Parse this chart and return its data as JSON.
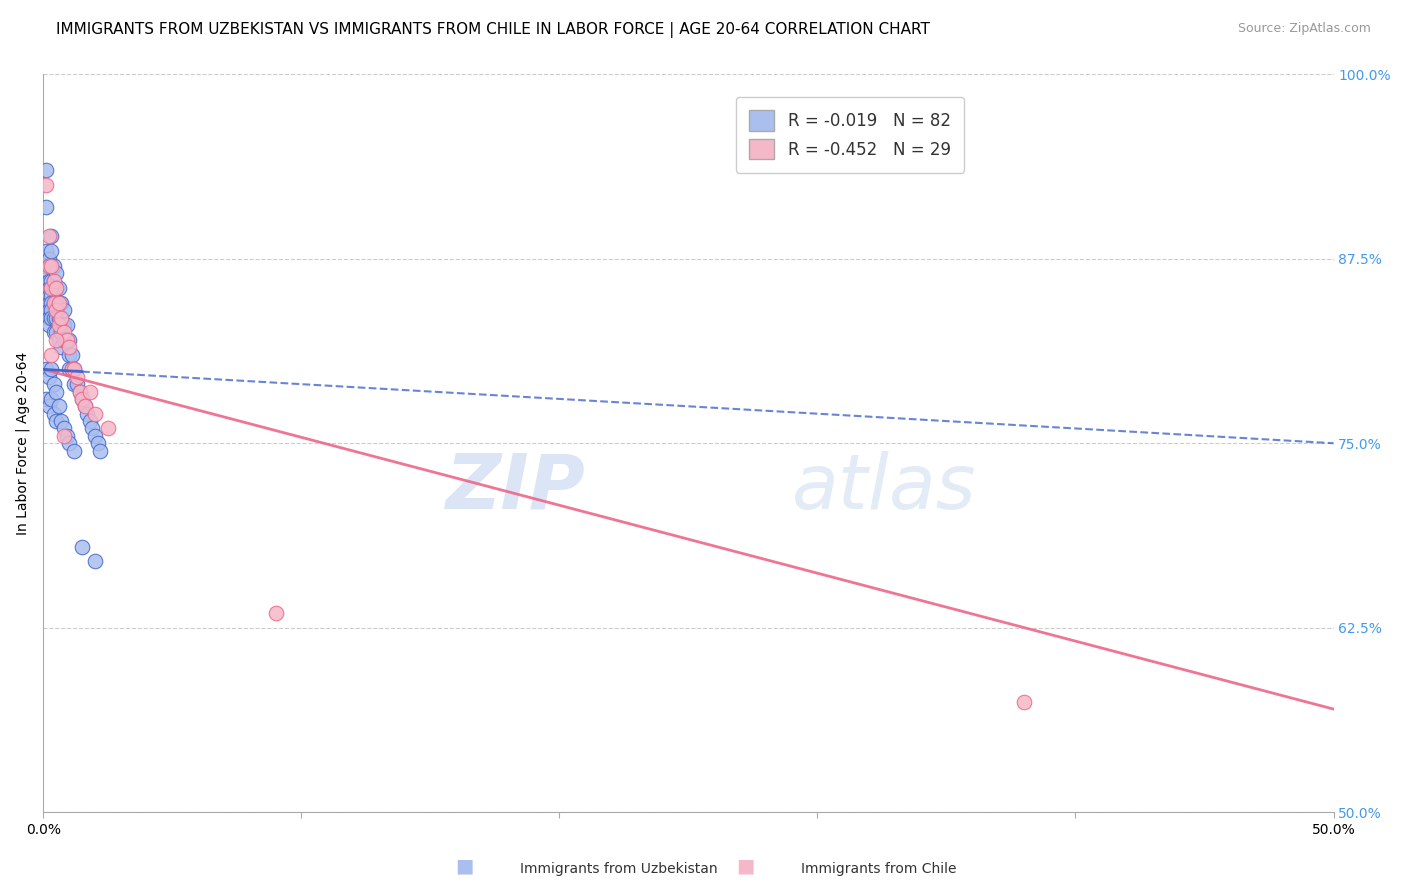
{
  "title": "IMMIGRANTS FROM UZBEKISTAN VS IMMIGRANTS FROM CHILE IN LABOR FORCE | AGE 20-64 CORRELATION CHART",
  "source": "Source: ZipAtlas.com",
  "ylabel": "In Labor Force | Age 20-64",
  "xlim": [
    0.0,
    0.5
  ],
  "ylim": [
    0.5,
    1.0
  ],
  "xticks": [
    0.0,
    0.1,
    0.2,
    0.3,
    0.4,
    0.5
  ],
  "xticklabels": [
    "0.0%",
    "",
    "",
    "",
    "",
    "50.0%"
  ],
  "yticks_right": [
    0.5,
    0.625,
    0.75,
    0.875,
    1.0
  ],
  "ytick_right_labels": [
    "50.0%",
    "62.5%",
    "75.0%",
    "87.5%",
    "100.0%"
  ],
  "grid_color": "#cccccc",
  "background_color": "#ffffff",
  "uzbekistan_color": "#aabfee",
  "uzbekistan_line_color": "#4466cc",
  "chile_color": "#f5b8c8",
  "chile_line_color": "#ee6688",
  "R_uzbekistan": -0.019,
  "N_uzbekistan": 82,
  "R_chile": -0.452,
  "N_chile": 29,
  "legend_label_uzbekistan": "Immigrants from Uzbekistan",
  "legend_label_chile": "Immigrants from Chile",
  "watermark": "ZIPatlas",
  "title_fontsize": 11,
  "axis_label_fontsize": 10,
  "tick_fontsize": 10,
  "uz_trend_x0": 0.0,
  "uz_trend_y0": 0.8,
  "uz_trend_x1": 0.5,
  "uz_trend_y1": 0.75,
  "ch_trend_x0": 0.0,
  "ch_trend_y0": 0.8,
  "ch_trend_x1": 0.5,
  "ch_trend_y1": 0.57,
  "uzbekistan_x": [
    0.001,
    0.001,
    0.001,
    0.001,
    0.002,
    0.002,
    0.002,
    0.002,
    0.002,
    0.002,
    0.002,
    0.002,
    0.002,
    0.002,
    0.003,
    0.003,
    0.003,
    0.003,
    0.003,
    0.003,
    0.003,
    0.003,
    0.003,
    0.004,
    0.004,
    0.004,
    0.004,
    0.004,
    0.004,
    0.005,
    0.005,
    0.005,
    0.005,
    0.005,
    0.006,
    0.006,
    0.006,
    0.006,
    0.007,
    0.007,
    0.007,
    0.007,
    0.008,
    0.008,
    0.008,
    0.009,
    0.009,
    0.01,
    0.01,
    0.01,
    0.011,
    0.011,
    0.012,
    0.012,
    0.013,
    0.014,
    0.015,
    0.016,
    0.017,
    0.018,
    0.019,
    0.02,
    0.021,
    0.022,
    0.001,
    0.001,
    0.002,
    0.002,
    0.003,
    0.003,
    0.004,
    0.004,
    0.005,
    0.005,
    0.006,
    0.007,
    0.008,
    0.009,
    0.01,
    0.012,
    0.015,
    0.02
  ],
  "uzbekistan_y": [
    0.935,
    0.91,
    0.88,
    0.87,
    0.875,
    0.87,
    0.865,
    0.86,
    0.855,
    0.85,
    0.845,
    0.84,
    0.835,
    0.83,
    0.89,
    0.88,
    0.87,
    0.86,
    0.855,
    0.85,
    0.845,
    0.84,
    0.835,
    0.87,
    0.86,
    0.855,
    0.845,
    0.835,
    0.825,
    0.865,
    0.855,
    0.845,
    0.835,
    0.825,
    0.855,
    0.845,
    0.835,
    0.82,
    0.845,
    0.835,
    0.825,
    0.815,
    0.84,
    0.83,
    0.82,
    0.83,
    0.82,
    0.82,
    0.81,
    0.8,
    0.81,
    0.8,
    0.8,
    0.79,
    0.79,
    0.785,
    0.78,
    0.775,
    0.77,
    0.765,
    0.76,
    0.755,
    0.75,
    0.745,
    0.8,
    0.78,
    0.795,
    0.775,
    0.8,
    0.78,
    0.79,
    0.77,
    0.785,
    0.765,
    0.775,
    0.765,
    0.76,
    0.755,
    0.75,
    0.745,
    0.68,
    0.67
  ],
  "chile_x": [
    0.001,
    0.002,
    0.002,
    0.003,
    0.003,
    0.004,
    0.004,
    0.005,
    0.005,
    0.006,
    0.006,
    0.007,
    0.008,
    0.009,
    0.01,
    0.011,
    0.012,
    0.013,
    0.014,
    0.015,
    0.016,
    0.018,
    0.02,
    0.025,
    0.003,
    0.005,
    0.008,
    0.38,
    0.09
  ],
  "chile_y": [
    0.925,
    0.87,
    0.89,
    0.87,
    0.855,
    0.86,
    0.845,
    0.855,
    0.84,
    0.845,
    0.83,
    0.835,
    0.825,
    0.82,
    0.815,
    0.8,
    0.8,
    0.795,
    0.785,
    0.78,
    0.775,
    0.785,
    0.77,
    0.76,
    0.81,
    0.82,
    0.755,
    0.575,
    0.635
  ]
}
